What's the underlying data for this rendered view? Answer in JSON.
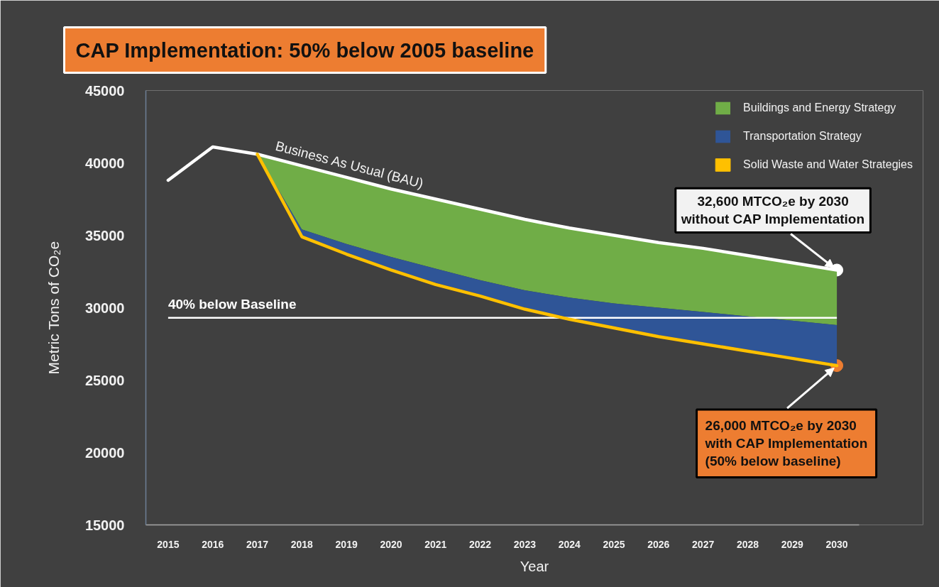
{
  "chart_data": {
    "type": "area",
    "title": "CAP Implementation: 50% below 2005 baseline",
    "xlabel": "Year",
    "ylabel": "Metric Tons of CO₂e",
    "categories": [
      "2015",
      "2016",
      "2017",
      "2018",
      "2019",
      "2020",
      "2021",
      "2022",
      "2023",
      "2024",
      "2025",
      "2026",
      "2027",
      "2028",
      "2029",
      "2030"
    ],
    "ylim": [
      15000,
      45000
    ],
    "yticks": [
      15000,
      20000,
      25000,
      30000,
      35000,
      40000,
      45000
    ],
    "series": [
      {
        "type": "line",
        "color": "#ffffff",
        "values": [
          38800,
          41100,
          40600,
          39800,
          39000,
          38200,
          37500,
          36800,
          36100,
          35500,
          35000,
          34500,
          34100,
          33600,
          33100,
          32600
        ]
      },
      {
        "name": "Buildings and Energy Strategy",
        "color": "#70ad47",
        "values": [
          null,
          null,
          40600,
          39800,
          39000,
          38200,
          37500,
          36800,
          36100,
          35500,
          35000,
          34500,
          34100,
          33600,
          33100,
          32600
        ]
      },
      {
        "name": "Transportation Strategy",
        "color": "#2f5597",
        "values": [
          null,
          null,
          40600,
          35400,
          34400,
          33500,
          32700,
          31900,
          31200,
          30700,
          30300,
          30000,
          29700,
          29400,
          29100,
          28800
        ]
      },
      {
        "name": "Solid Waste and Water Strategies",
        "type": "line",
        "color": "#ffc000",
        "values": [
          null,
          null,
          40600,
          34900,
          33700,
          32600,
          31600,
          30800,
          29900,
          29200,
          28600,
          28000,
          27500,
          27000,
          26500,
          26000
        ]
      },
      {
        "type": "scatter",
        "color": "#ffffff",
        "values": [
          null,
          null,
          null,
          null,
          null,
          null,
          null,
          null,
          null,
          null,
          null,
          null,
          null,
          null,
          null,
          32600
        ]
      },
      {
        "type": "scatter",
        "color": "#ed7d31",
        "values": [
          null,
          null,
          null,
          null,
          null,
          null,
          null,
          null,
          null,
          null,
          null,
          null,
          null,
          null,
          null,
          26000
        ]
      }
    ],
    "ref_lines": [
      {
        "axis": "y",
        "value": 29300,
        "label": "40% below Baseline",
        "color": "#ffffff"
      }
    ],
    "annotations": [
      {
        "text": "Business As Usual (BAU)",
        "x": "2019",
        "y": 39000
      },
      {
        "text": "32,600 MTCO₂e by 2030\nwithout CAP Implementation",
        "x": "2030",
        "y": 32600
      },
      {
        "text": "26,000 MTCO₂e by 2030\nwith CAP Implementation\n(50% below baseline)",
        "x": "2030",
        "y": 26000
      }
    ],
    "grid": false,
    "legend": "top right"
  }
}
